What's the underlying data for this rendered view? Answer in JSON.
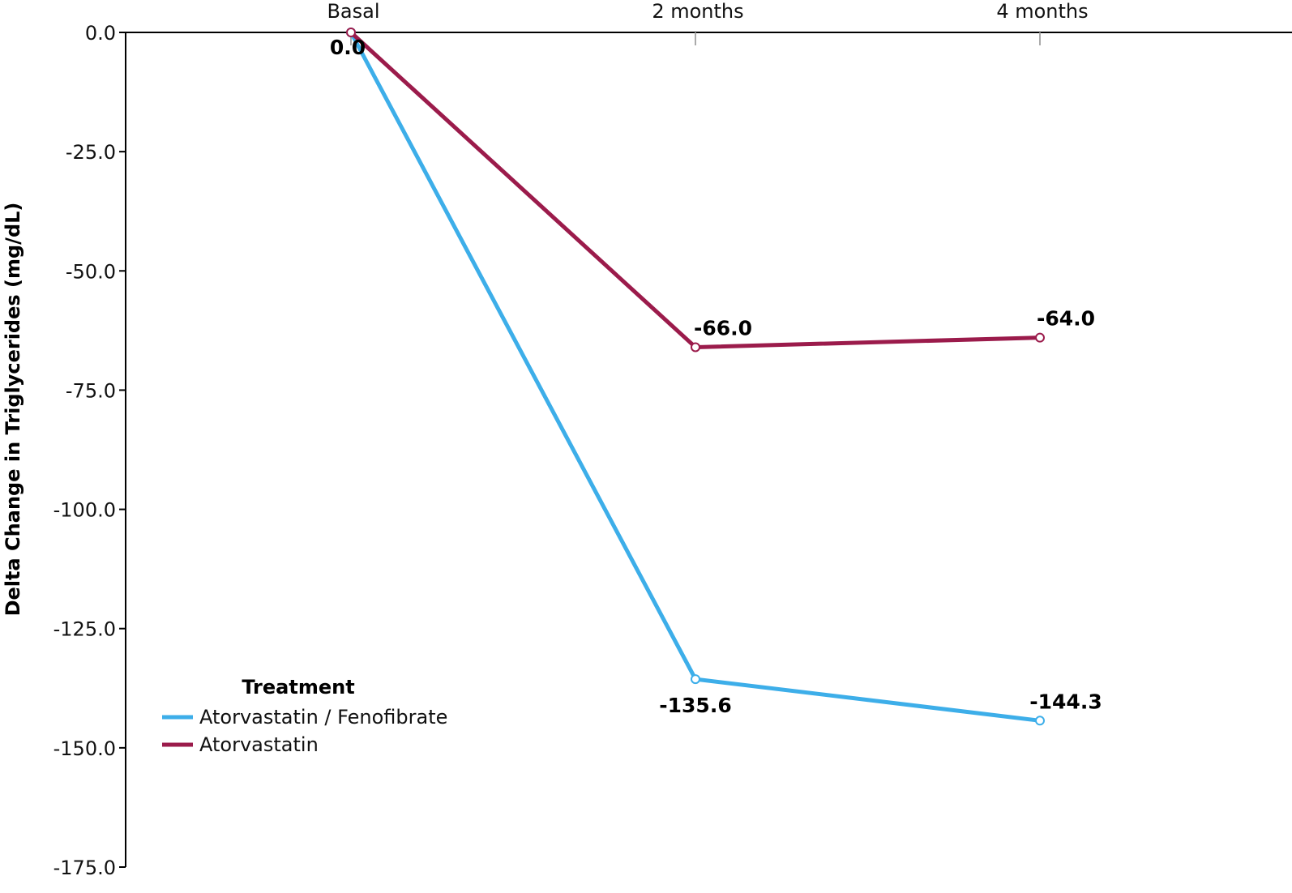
{
  "chart_data": {
    "type": "line",
    "categories": [
      "Basal",
      "2 months",
      "4 months"
    ],
    "series": [
      {
        "name": "Atorvastatin / Fenofibrate",
        "values": [
          0.0,
          -135.6,
          -144.3
        ],
        "labels": [
          "0.0",
          "-135.6",
          "-144.3"
        ],
        "color": "#3daee9"
      },
      {
        "name": "Atorvastatin",
        "values": [
          0.0,
          -66.0,
          -64.0
        ],
        "labels": [
          "0.0",
          "-66.0",
          "-64.0"
        ],
        "color": "#9b1b4b"
      }
    ],
    "ylabel": "Delta Change in Triglycerides (mg/dL)",
    "xlabel": "",
    "ylim": [
      -175,
      0
    ],
    "yticks": [
      "0.0",
      "-25.0",
      "-50.0",
      "-75.0",
      "-100.0",
      "-125.0",
      "-150.0",
      "-175.0"
    ],
    "xaxis_position": "top",
    "grid": false,
    "legend": {
      "title": "Treatment",
      "placement": "bottom-left"
    }
  }
}
